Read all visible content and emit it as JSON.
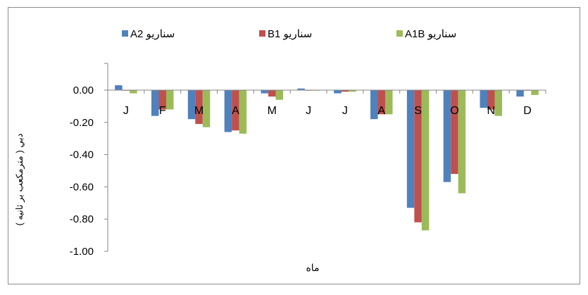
{
  "chart_data": {
    "type": "bar",
    "categories": [
      "J",
      "F",
      "M",
      "A",
      "M",
      "J",
      "J",
      "A",
      "S",
      "O",
      "N",
      "D"
    ],
    "series": [
      {
        "name": "سناریو A2",
        "color": "#4f81bd",
        "values": [
          0.03,
          -0.16,
          -0.18,
          -0.26,
          -0.02,
          0.01,
          -0.02,
          -0.18,
          -0.73,
          -0.57,
          -0.11,
          -0.04
        ]
      },
      {
        "name": "سناریو B1",
        "color": "#c0504d",
        "values": [
          0.0,
          -0.12,
          -0.21,
          -0.25,
          -0.04,
          0.0,
          -0.01,
          -0.15,
          -0.82,
          -0.52,
          -0.12,
          0.0
        ]
      },
      {
        "name": "سناریو A1B",
        "color": "#9bbb59",
        "values": [
          -0.02,
          -0.12,
          -0.23,
          -0.27,
          -0.06,
          0.0,
          -0.01,
          -0.15,
          -0.87,
          -0.64,
          -0.16,
          -0.03
        ]
      }
    ],
    "yticks": [
      "0.00",
      "-0.20",
      "-0.40",
      "-0.60",
      "-0.80",
      "-1.00"
    ],
    "ylim": [
      -1.0,
      0.0
    ],
    "xlabel": "ماه",
    "ylabel": "دبي ( مترمکعب بر ثانيه )",
    "legend_position": "top",
    "grid": false
  }
}
